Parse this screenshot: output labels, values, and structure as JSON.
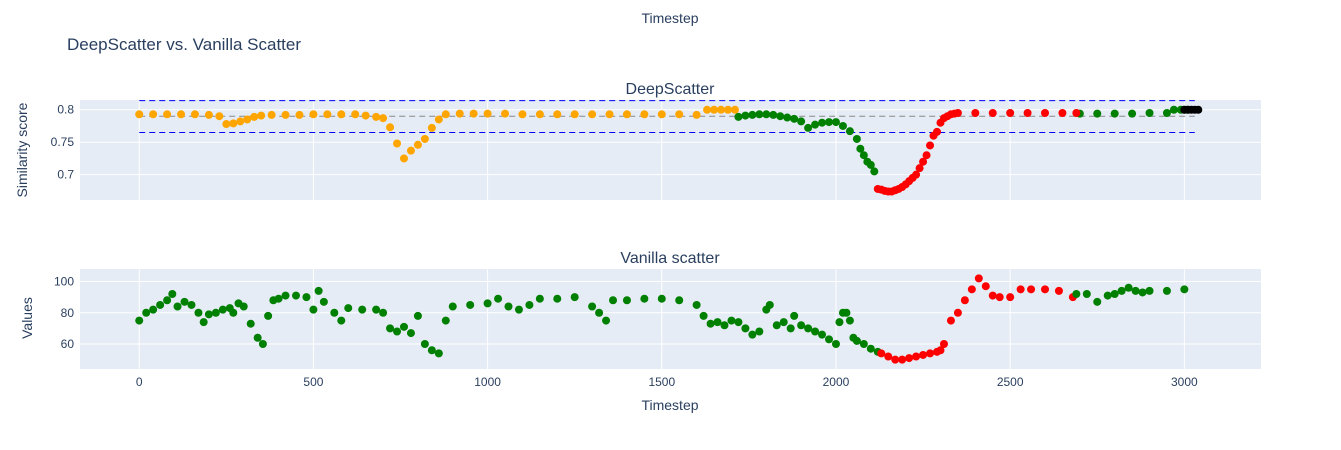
{
  "top_label": "Timestep",
  "chart_data": {
    "type": "scatter",
    "title": "DeepScatter vs. Vanilla Scatter",
    "colors": {
      "orange": "#ffa500",
      "green": "#008000",
      "red": "#ff0000",
      "black": "#000000",
      "threshold_line": "#0000ff",
      "mean_line": "#888888",
      "plot_bg": "#e5ecf6",
      "grid": "#ffffff"
    },
    "subplots": [
      {
        "title": "DeepScatter",
        "ylabel": "Similarity score",
        "xlim": [
          -170,
          3220
        ],
        "ylim": [
          0.661,
          0.815
        ],
        "yticks": [
          0.7,
          0.75,
          0.8
        ],
        "ytick_labels": [
          "0.7",
          "0.75",
          "0.8"
        ],
        "xticks": [
          0,
          500,
          1000,
          1500,
          2000,
          2500,
          3000
        ],
        "show_xtick_labels": false,
        "reference_lines": [
          {
            "y": 0.814,
            "style": "dashed",
            "color": "#0000ff",
            "x_range": [
              0,
              3030
            ]
          },
          {
            "y": 0.765,
            "style": "dashed",
            "color": "#0000ff",
            "x_range": [
              0,
              3030
            ]
          },
          {
            "y": 0.79,
            "style": "dashed",
            "color": "#888888",
            "x_range": [
              0,
              3030
            ]
          }
        ],
        "series": [
          {
            "color": "#ffa500",
            "x": [
              0,
              40,
              80,
              120,
              160,
              200,
              230,
              250,
              270,
              290,
              310,
              330,
              350,
              380,
              420,
              460,
              500,
              540,
              580,
              620,
              650,
              680,
              700,
              720,
              740,
              760,
              780,
              800,
              820,
              840,
              860,
              880,
              920,
              960,
              1000,
              1050,
              1100,
              1150,
              1200,
              1250,
              1300,
              1350,
              1400,
              1450,
              1500,
              1550,
              1600,
              1630,
              1650,
              1670,
              1690,
              1710
            ],
            "y": [
              0.793,
              0.793,
              0.793,
              0.793,
              0.793,
              0.792,
              0.79,
              0.778,
              0.779,
              0.782,
              0.785,
              0.789,
              0.791,
              0.792,
              0.792,
              0.792,
              0.793,
              0.793,
              0.793,
              0.793,
              0.791,
              0.789,
              0.787,
              0.773,
              0.748,
              0.725,
              0.737,
              0.746,
              0.755,
              0.772,
              0.785,
              0.793,
              0.794,
              0.794,
              0.794,
              0.794,
              0.793,
              0.793,
              0.793,
              0.793,
              0.793,
              0.793,
              0.793,
              0.793,
              0.793,
              0.793,
              0.792,
              0.8,
              0.8,
              0.8,
              0.8,
              0.8
            ]
          },
          {
            "color": "#008000",
            "x": [
              1720,
              1740,
              1760,
              1780,
              1800,
              1820,
              1840,
              1860,
              1880,
              1900,
              1920,
              1940,
              1960,
              1980,
              2000,
              2020,
              2040,
              2060,
              2070,
              2080,
              2090,
              2100,
              2110,
              3000,
              2700,
              2750,
              2800,
              2850,
              2900,
              2950,
              2970,
              2990,
              3010
            ],
            "y": [
              0.789,
              0.791,
              0.792,
              0.793,
              0.793,
              0.792,
              0.79,
              0.788,
              0.786,
              0.782,
              0.772,
              0.777,
              0.78,
              0.781,
              0.781,
              0.775,
              0.767,
              0.755,
              0.74,
              0.73,
              0.72,
              0.715,
              0.705,
              0.8,
              0.794,
              0.794,
              0.794,
              0.794,
              0.795,
              0.795,
              0.8,
              0.8,
              0.8
            ]
          },
          {
            "color": "#ff0000",
            "x": [
              2120,
              2130,
              2140,
              2150,
              2160,
              2170,
              2180,
              2190,
              2200,
              2210,
              2220,
              2230,
              2240,
              2250,
              2260,
              2270,
              2280,
              2290,
              2300,
              2310,
              2320,
              2330,
              2340,
              2350,
              2400,
              2450,
              2500,
              2550,
              2600,
              2650,
              2690
            ],
            "y": [
              0.678,
              0.677,
              0.675,
              0.674,
              0.674,
              0.676,
              0.678,
              0.681,
              0.685,
              0.69,
              0.695,
              0.7,
              0.71,
              0.72,
              0.73,
              0.745,
              0.76,
              0.766,
              0.78,
              0.787,
              0.79,
              0.793,
              0.794,
              0.795,
              0.795,
              0.795,
              0.795,
              0.795,
              0.795,
              0.795,
              0.795
            ]
          },
          {
            "color": "#000000",
            "x": [
              3000,
              3010,
              3020,
              3030,
              3040
            ],
            "y": [
              0.8,
              0.8,
              0.8,
              0.8,
              0.8
            ]
          }
        ]
      },
      {
        "title": "Vanilla scatter",
        "ylabel": "Values",
        "xlabel": "Timestep",
        "xlim": [
          -170,
          3220
        ],
        "ylim": [
          44,
          108
        ],
        "yticks": [
          60,
          80,
          100
        ],
        "ytick_labels": [
          "60",
          "80",
          "100"
        ],
        "xticks": [
          0,
          500,
          1000,
          1500,
          2000,
          2500,
          3000
        ],
        "xtick_labels": [
          "0",
          "500",
          "1000",
          "1500",
          "2000",
          "2500",
          "3000"
        ],
        "series": [
          {
            "color": "#008000",
            "x": [
              0,
              20,
              40,
              60,
              80,
              95,
              110,
              130,
              150,
              170,
              185,
              200,
              220,
              240,
              260,
              270,
              285,
              300,
              320,
              340,
              355,
              370,
              385,
              400,
              420,
              450,
              480,
              500,
              515,
              530,
              560,
              580,
              600,
              640,
              680,
              700,
              720,
              740,
              760,
              780,
              800,
              820,
              840,
              860,
              880,
              900,
              950,
              1000,
              1030,
              1060,
              1090,
              1120,
              1150,
              1200,
              1250,
              1300,
              1320,
              1340,
              1360,
              1400,
              1450,
              1500,
              1550,
              1600,
              1620,
              1640,
              1660,
              1680,
              1700,
              1720,
              1740,
              1760,
              1780,
              1800,
              1810,
              1830,
              1850,
              1870,
              1880,
              1900,
              1920,
              1940,
              1960,
              1980,
              2000,
              2010,
              2020,
              2030,
              2040,
              2050,
              2060,
              2080,
              2100,
              2120
            ],
            "y": [
              75,
              80,
              82,
              85,
              88,
              92,
              84,
              87,
              85,
              80,
              74,
              79,
              80,
              82,
              83,
              80,
              86,
              84,
              73,
              64,
              60,
              78,
              88,
              89,
              91,
              91,
              90,
              82,
              94,
              87,
              80,
              75,
              83,
              82,
              82,
              80,
              70,
              68,
              71,
              67,
              78,
              60,
              56,
              54,
              75,
              84,
              85,
              86,
              89,
              84,
              82,
              85,
              89,
              89,
              90,
              84,
              80,
              75,
              88,
              88,
              89,
              89,
              88,
              85,
              78,
              73,
              74,
              72,
              75,
              74,
              70,
              66,
              68,
              82,
              85,
              72,
              74,
              70,
              78,
              72,
              70,
              68,
              66,
              63,
              60,
              74,
              80,
              80,
              75,
              64,
              62,
              60,
              57,
              55
            ]
          },
          {
            "color": "#ff0000",
            "x": [
              2130,
              2150,
              2170,
              2190,
              2210,
              2230,
              2250,
              2270,
              2290,
              2300,
              2310,
              2330,
              2350,
              2370,
              2390,
              2410,
              2430,
              2450,
              2470,
              2500,
              2530,
              2560,
              2600,
              2640,
              2680
            ],
            "y": [
              54,
              52,
              50,
              50,
              51,
              52,
              53,
              54,
              55,
              56,
              60,
              75,
              80,
              88,
              95,
              102,
              97,
              91,
              90,
              90,
              95,
              95,
              95,
              94,
              90
            ]
          },
          {
            "color": "#008000",
            "x": [
              2690,
              2720,
              2750,
              2780,
              2800,
              2820,
              2840,
              2860,
              2880,
              2900,
              2950,
              3000
            ],
            "y": [
              92,
              92,
              87,
              91,
              92,
              94,
              96,
              94,
              93,
              94,
              94,
              95
            ]
          }
        ]
      }
    ]
  }
}
